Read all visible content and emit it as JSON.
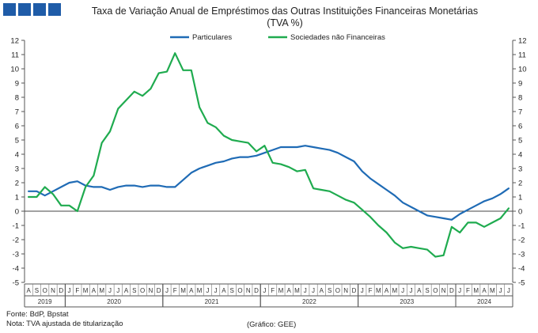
{
  "header": {
    "logo_blocks": 4
  },
  "chart_data": {
    "type": "line",
    "title": "Taxa de Variação Anual de Empréstimos das Outras Instituições Financeiras Monetárias",
    "subtitle": "(TVA %)",
    "xlabel": "",
    "ylabel": "",
    "ylim": [
      -5,
      12
    ],
    "yticks": [
      -5,
      -4,
      -3,
      -2,
      -1,
      0,
      1,
      2,
      3,
      4,
      5,
      6,
      7,
      8,
      9,
      10,
      11,
      12
    ],
    "grid": false,
    "legend_position": "top",
    "months": [
      "A",
      "S",
      "O",
      "N",
      "D",
      "J",
      "F",
      "M",
      "A",
      "M",
      "J",
      "J",
      "A",
      "S",
      "O",
      "N",
      "D",
      "J",
      "F",
      "M",
      "A",
      "M",
      "J",
      "J",
      "A",
      "S",
      "O",
      "N",
      "D",
      "J",
      "F",
      "M",
      "A",
      "M",
      "J",
      "J",
      "A",
      "S",
      "O",
      "N",
      "D",
      "J",
      "F",
      "M",
      "A",
      "M",
      "J",
      "J",
      "A",
      "S",
      "O",
      "N",
      "D",
      "J",
      "F",
      "M",
      "A",
      "M",
      "J",
      "J"
    ],
    "years": [
      {
        "label": "2019",
        "start": 0,
        "end": 4
      },
      {
        "label": "2020",
        "start": 5,
        "end": 16
      },
      {
        "label": "2021",
        "start": 17,
        "end": 28
      },
      {
        "label": "2022",
        "start": 29,
        "end": 40
      },
      {
        "label": "2023",
        "start": 41,
        "end": 52
      },
      {
        "label": "2024",
        "start": 53,
        "end": 59
      }
    ],
    "series": [
      {
        "name": "Particulares",
        "color": "#1f6bb5",
        "values": [
          1.4,
          1.4,
          1.1,
          1.4,
          1.7,
          2.0,
          2.1,
          1.8,
          1.7,
          1.7,
          1.5,
          1.7,
          1.8,
          1.8,
          1.7,
          1.8,
          1.8,
          1.7,
          1.7,
          2.2,
          2.7,
          3.0,
          3.2,
          3.4,
          3.5,
          3.7,
          3.8,
          3.8,
          3.9,
          4.1,
          4.3,
          4.5,
          4.5,
          4.5,
          4.6,
          4.5,
          4.4,
          4.3,
          4.1,
          3.8,
          3.5,
          2.8,
          2.3,
          1.9,
          1.5,
          1.1,
          0.6,
          0.3,
          0.0,
          -0.3,
          -0.4,
          -0.5,
          -0.6,
          -0.2,
          0.1,
          0.4,
          0.7,
          0.9,
          1.2,
          1.6
        ]
      },
      {
        "name": "Sociedades não Financeiras",
        "color": "#1fab4f",
        "values": [
          1.0,
          1.0,
          1.7,
          1.2,
          0.4,
          0.4,
          0.0,
          1.7,
          2.5,
          4.8,
          5.6,
          7.2,
          7.8,
          8.4,
          8.1,
          8.6,
          9.7,
          9.8,
          11.1,
          9.9,
          9.9,
          7.3,
          6.2,
          5.9,
          5.3,
          5.0,
          4.9,
          4.8,
          4.2,
          4.6,
          3.4,
          3.3,
          3.1,
          2.8,
          2.9,
          1.6,
          1.5,
          1.4,
          1.1,
          0.8,
          0.6,
          0.1,
          -0.4,
          -1.0,
          -1.5,
          -2.2,
          -2.6,
          -2.5,
          -2.6,
          -2.7,
          -3.2,
          -3.1,
          -1.1,
          -1.5,
          -0.8,
          -0.8,
          -1.1,
          -0.8,
          -0.5,
          0.2
        ]
      }
    ]
  },
  "footer": {
    "source": "Fonte: BdP, Bpstat",
    "note": "Nota: TVA ajustada de titularização",
    "credit": "(Gráfico: GEE)"
  }
}
